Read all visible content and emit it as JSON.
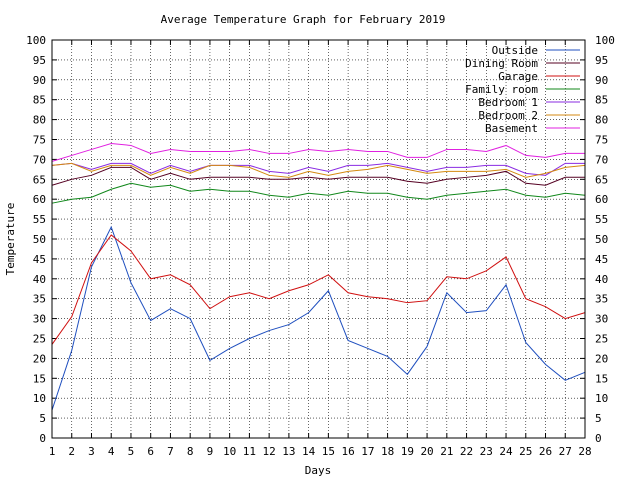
{
  "chart_data": {
    "type": "line",
    "title": "Average Temperature Graph for February 2019",
    "xlabel": "Days",
    "ylabel": "Temperature",
    "xlim": [
      1,
      28
    ],
    "ylim": [
      0,
      100
    ],
    "x_ticks": [
      1,
      2,
      3,
      4,
      5,
      6,
      7,
      8,
      9,
      10,
      11,
      12,
      13,
      14,
      15,
      16,
      17,
      18,
      19,
      20,
      21,
      22,
      23,
      24,
      25,
      26,
      27,
      28
    ],
    "y_ticks": [
      0,
      5,
      10,
      15,
      20,
      25,
      30,
      35,
      40,
      45,
      50,
      55,
      60,
      65,
      70,
      75,
      80,
      85,
      90,
      95,
      100
    ],
    "grid": true,
    "legend_position": "top-right",
    "x": [
      1,
      2,
      3,
      4,
      5,
      6,
      7,
      8,
      9,
      10,
      11,
      12,
      13,
      14,
      15,
      16,
      17,
      18,
      19,
      20,
      21,
      22,
      23,
      24,
      25,
      26,
      27,
      28
    ],
    "series": [
      {
        "name": "Outside",
        "color": "#1f4fbf",
        "values": [
          7,
          22,
          43,
          53,
          39,
          29.5,
          32.5,
          30,
          19.5,
          22.5,
          25,
          27,
          28.5,
          31.5,
          37,
          24.5,
          22.5,
          20.5,
          16,
          23,
          36.5,
          31.5,
          32,
          38.5,
          24,
          18.5,
          14.5,
          16.5
        ]
      },
      {
        "name": "Dining Room",
        "color": "#550022",
        "values": [
          63.5,
          65,
          66,
          68,
          68,
          65,
          66.5,
          65,
          65.5,
          65.5,
          65.5,
          65,
          65,
          65.5,
          65,
          65.5,
          65.5,
          65.5,
          64.5,
          64,
          65,
          65.5,
          66,
          67,
          64,
          63.5,
          65.5,
          65.5
        ]
      },
      {
        "name": "Garage",
        "color": "#d01010",
        "values": [
          23.5,
          30.5,
          44,
          51,
          47,
          40,
          41,
          38.5,
          32.5,
          35.5,
          36.5,
          35,
          37,
          38.5,
          41,
          36.5,
          35.5,
          35,
          34,
          34.5,
          40.5,
          40,
          42,
          45.5,
          35,
          33,
          30,
          31.5
        ]
      },
      {
        "name": "Family room",
        "color": "#10871a",
        "values": [
          59,
          60,
          60.5,
          62.5,
          64,
          63,
          63.5,
          62,
          62.5,
          62,
          62,
          61,
          60.5,
          61.5,
          61,
          62,
          61.5,
          61.5,
          60.5,
          60,
          61,
          61.5,
          62,
          62.5,
          61,
          60.5,
          61.5,
          61
        ]
      },
      {
        "name": "Bedroom 1",
        "color": "#8a2be2",
        "values": [
          68.5,
          69,
          67.5,
          69,
          69,
          66.5,
          68.5,
          67,
          68.5,
          68.5,
          68.5,
          67,
          66.5,
          68,
          67,
          68.5,
          68.5,
          69,
          68,
          67,
          68,
          68,
          68.5,
          68.5,
          66.5,
          66,
          69,
          69
        ]
      },
      {
        "name": "Bedroom 2",
        "color": "#d48a10",
        "values": [
          68.5,
          69,
          67,
          68.5,
          68.5,
          66,
          68,
          66.5,
          68.5,
          68.5,
          68,
          66,
          65.5,
          67,
          66,
          67,
          67.5,
          68.5,
          67.5,
          66.5,
          67,
          67,
          67,
          67.5,
          65.5,
          66.5,
          68,
          68.5
        ]
      },
      {
        "name": "Basement",
        "color": "#e020e0",
        "values": [
          69.5,
          71,
          72.5,
          74,
          73.5,
          71.5,
          72.5,
          72,
          72,
          72,
          72.5,
          71.5,
          71.5,
          72.5,
          72,
          72.5,
          72,
          72,
          70.5,
          70.5,
          72.5,
          72.5,
          72,
          73.5,
          71,
          70.5,
          71.5,
          71.5
        ]
      }
    ]
  }
}
